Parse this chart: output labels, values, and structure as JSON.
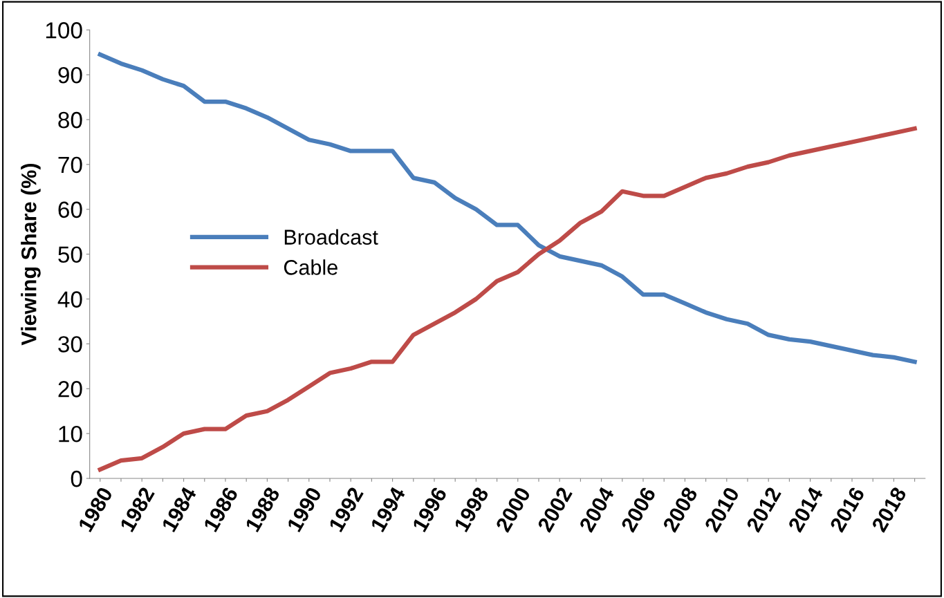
{
  "chart_data": {
    "type": "line",
    "ylabel": "Viewing Share (%)",
    "categories": [
      "1980",
      null,
      "1982",
      null,
      "1984",
      null,
      "1986",
      null,
      "1988",
      null,
      "1990",
      null,
      "1992",
      null,
      "1994",
      null,
      "1996",
      null,
      "1998",
      null,
      "2000",
      null,
      "2002",
      null,
      "2004",
      null,
      "2006",
      null,
      "2008",
      null,
      "2010",
      null,
      "2012",
      null,
      "2014",
      null,
      "2016",
      null,
      "2018",
      null
    ],
    "series": [
      {
        "name": "Broadcast",
        "color": "#4a7ebb",
        "values": [
          94.5,
          92.5,
          91,
          89,
          87.5,
          84,
          84,
          82.5,
          80.5,
          78,
          75.5,
          74.5,
          73,
          73,
          73,
          67,
          66,
          62.5,
          60,
          56.5,
          56.5,
          52,
          49.5,
          48.5,
          47.5,
          45,
          41,
          41,
          39,
          37,
          35.5,
          34.5,
          32,
          31,
          30.5,
          29.5,
          28.5,
          27.5,
          27,
          26
        ]
      },
      {
        "name": "Cable",
        "color": "#be4b48",
        "values": [
          2,
          4,
          4.5,
          7,
          10,
          11,
          11,
          14,
          15,
          17.5,
          20.5,
          23.5,
          24.5,
          26,
          26,
          32,
          34.5,
          37,
          40,
          44,
          46,
          50,
          53,
          57,
          59.5,
          64,
          63,
          63,
          65,
          67,
          68,
          69.5,
          70.5,
          72,
          73,
          74,
          75,
          76,
          77,
          78
        ]
      }
    ],
    "ylim": [
      0,
      100
    ],
    "yticks": [
      0,
      10,
      20,
      30,
      40,
      50,
      60,
      70,
      80,
      90,
      100
    ],
    "legend": "center left",
    "grid": false,
    "marker": "none",
    "line_style": "solid"
  }
}
